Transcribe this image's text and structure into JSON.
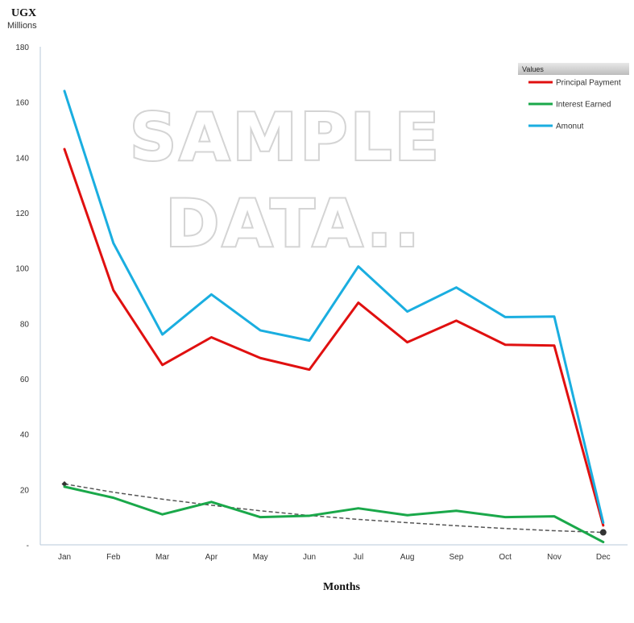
{
  "chart_data": {
    "type": "line",
    "unit_title": "UGX",
    "unit_subtitle": "Millions",
    "xlabel": "Months",
    "categories": [
      "Jan",
      "Feb",
      "Mar",
      "Apr",
      "May",
      "Jun",
      "Jul",
      "Aug",
      "Sep",
      "Oct",
      "Nov",
      "Dec"
    ],
    "ylim": [
      0,
      180
    ],
    "y_ticks": [
      {
        "value": 0,
        "label": "-"
      },
      {
        "value": 20,
        "label": "20"
      },
      {
        "value": 40,
        "label": "40"
      },
      {
        "value": 60,
        "label": "60"
      },
      {
        "value": 80,
        "label": "80"
      },
      {
        "value": 100,
        "label": "100"
      },
      {
        "value": 120,
        "label": "120"
      },
      {
        "value": 140,
        "label": "140"
      },
      {
        "value": 160,
        "label": "160"
      },
      {
        "value": 180,
        "label": "180"
      }
    ],
    "legend_title": "Values",
    "legend_position": "top-right",
    "series": [
      {
        "name": "Principal Payment",
        "color": "#e01010",
        "values": [
          143,
          92,
          65,
          75,
          67.5,
          63.3,
          87.5,
          73.2,
          81,
          72.3,
          72,
          7
        ]
      },
      {
        "name": "Interest Earned",
        "color": "#1aa84a",
        "values": [
          21,
          17,
          11,
          15.5,
          10,
          10.5,
          13.2,
          10.7,
          12.3,
          10,
          10.3,
          1
        ]
      },
      {
        "name": "Amonut",
        "color": "#1aaee0",
        "values": [
          164,
          109,
          76,
          90.5,
          77.5,
          73.8,
          100.6,
          84.3,
          93,
          82.3,
          82.5,
          8
        ]
      }
    ],
    "trendline": {
      "color": "#555555",
      "style": "dashed",
      "values": [
        22,
        19,
        16.5,
        14.3,
        12.3,
        10.6,
        9.2,
        8,
        6.9,
        5.9,
        5.1,
        4.5
      ]
    },
    "watermark_lines": [
      "SAMPLE",
      "DATA.."
    ]
  }
}
